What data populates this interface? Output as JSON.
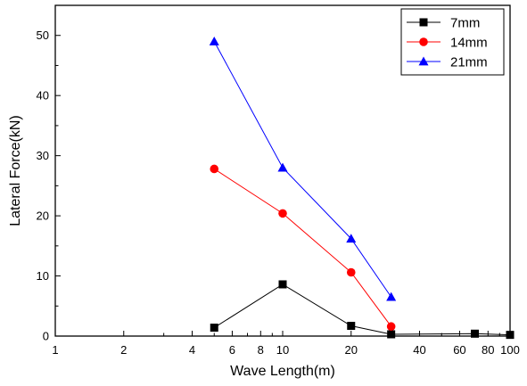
{
  "chart_data": {
    "type": "line",
    "title": "",
    "xlabel": "Wave Length(m)",
    "ylabel": "Lateral Force(kN)",
    "xscale": "log",
    "xlim": [
      1,
      100
    ],
    "ylim": [
      0,
      55
    ],
    "xticks": [
      1,
      2,
      4,
      6,
      8,
      10,
      20,
      40,
      60,
      80,
      100
    ],
    "xtick_labels": [
      "1",
      "2",
      "4",
      "6",
      "8",
      "10",
      "20",
      "40",
      "60",
      "80",
      "100"
    ],
    "xticks_minor": [
      3,
      5,
      7,
      9,
      30,
      50,
      70,
      90
    ],
    "yticks": [
      0,
      10,
      20,
      30,
      40,
      50
    ],
    "ytick_labels": [
      "0",
      "10",
      "20",
      "30",
      "40",
      "50"
    ],
    "grid": false,
    "legend_position": "top-right",
    "series": [
      {
        "name": "7mm",
        "color": "#000000",
        "marker": "square",
        "x": [
          5,
          10,
          20,
          30,
          70,
          100
        ],
        "y": [
          1.4,
          8.6,
          1.7,
          0.3,
          0.4,
          0.2
        ]
      },
      {
        "name": "14mm",
        "color": "#ff0000",
        "marker": "circle",
        "x": [
          5,
          10,
          20,
          30
        ],
        "y": [
          27.8,
          20.4,
          10.6,
          1.6
        ]
      },
      {
        "name": "21mm",
        "color": "#0000ff",
        "marker": "triangle",
        "x": [
          5,
          10,
          20,
          30
        ],
        "y": [
          49.0,
          28.0,
          16.2,
          6.5
        ]
      }
    ]
  }
}
